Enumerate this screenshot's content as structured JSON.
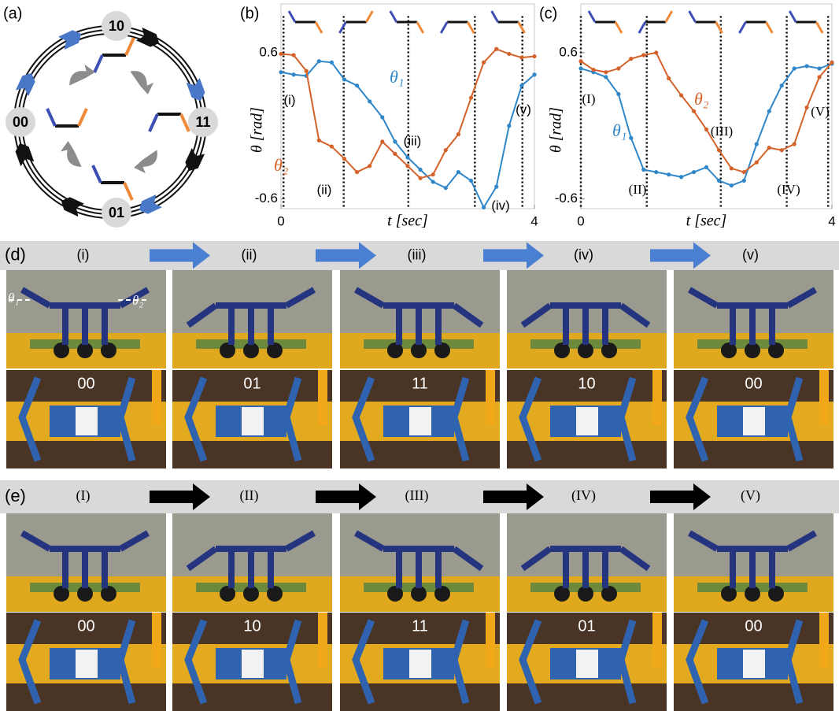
{
  "panel_a": {
    "label": "(a)",
    "states": [
      "10",
      "11",
      "01",
      "00"
    ]
  },
  "chart_data": [
    {
      "type": "line",
      "panel_label": "(b)",
      "xlabel": "t [sec]",
      "ylabel": "θ [rad]",
      "x": [
        0,
        0.2,
        0.4,
        0.6,
        0.8,
        1.0,
        1.2,
        1.4,
        1.6,
        1.8,
        2.0,
        2.2,
        2.4,
        2.6,
        2.8,
        3.0,
        3.2,
        3.4,
        3.6,
        3.8,
        4.0
      ],
      "series": [
        {
          "name": "θ₁",
          "color": "#2f86c8",
          "values": [
            0.44,
            0.42,
            0.41,
            0.53,
            0.52,
            0.38,
            0.33,
            0.2,
            0.07,
            -0.13,
            -0.26,
            -0.36,
            -0.46,
            -0.51,
            -0.38,
            -0.45,
            -0.67,
            -0.5,
            0.0,
            0.33,
            0.42
          ]
        },
        {
          "name": "θ₂",
          "color": "#d4622a",
          "values": [
            0.59,
            0.58,
            0.45,
            -0.12,
            -0.17,
            -0.27,
            -0.38,
            -0.33,
            -0.13,
            -0.23,
            -0.33,
            -0.43,
            -0.4,
            -0.2,
            -0.07,
            0.23,
            0.52,
            0.63,
            0.59,
            0.56,
            0.57
          ]
        }
      ],
      "xlim": [
        0,
        4
      ],
      "ylim": [
        -0.68,
        1.0
      ],
      "xticks": [
        0,
        4
      ],
      "yticks": [
        -0.6,
        0.6
      ],
      "event_lines": [
        0.04,
        0.99,
        2.01,
        3.06,
        3.81
      ],
      "event_labels": [
        "(i)",
        "(ii)",
        "(iii)",
        "(iv)",
        "(v)"
      ]
    },
    {
      "type": "line",
      "panel_label": "(c)",
      "xlabel": "t [sec]",
      "ylabel": "θ [rad]",
      "x": [
        0,
        0.2,
        0.4,
        0.6,
        0.8,
        1.0,
        1.2,
        1.4,
        1.6,
        1.8,
        2.0,
        2.2,
        2.4,
        2.6,
        2.8,
        3.0,
        3.2,
        3.4,
        3.6,
        3.8,
        4.0
      ],
      "series": [
        {
          "name": "θ₁",
          "color": "#2f86c8",
          "values": [
            0.47,
            0.44,
            0.4,
            0.26,
            -0.1,
            -0.36,
            -0.38,
            -0.4,
            -0.42,
            -0.38,
            -0.34,
            -0.45,
            -0.49,
            -0.45,
            -0.15,
            0.12,
            0.33,
            0.47,
            0.49,
            0.47,
            0.51
          ]
        },
        {
          "name": "θ₂",
          "color": "#d4622a",
          "values": [
            0.53,
            0.46,
            0.44,
            0.47,
            0.55,
            0.58,
            0.6,
            0.39,
            0.25,
            0.12,
            -0.03,
            -0.2,
            -0.35,
            -0.38,
            -0.3,
            -0.18,
            -0.2,
            -0.15,
            0.15,
            0.4,
            0.52
          ]
        }
      ],
      "xlim": [
        0,
        4
      ],
      "ylim": [
        -0.68,
        1.0
      ],
      "xticks": [
        0,
        4
      ],
      "yticks": [
        -0.6,
        0.6
      ],
      "event_lines": [
        0.0,
        1.05,
        2.23,
        3.28,
        3.94
      ],
      "event_labels": [
        "(I)",
        "(II)",
        "(III)",
        "(IV)",
        "(V)"
      ]
    }
  ],
  "panel_d": {
    "label": "(d)",
    "stages": [
      "(i)",
      "(ii)",
      "(iii)",
      "(iv)",
      "(v)"
    ],
    "codes": [
      "00",
      "01",
      "11",
      "10",
      "00"
    ],
    "angle_labels": [
      "θ₁",
      "θ₂"
    ]
  },
  "panel_e": {
    "label": "(e)",
    "stages": [
      "(I)",
      "(II)",
      "(III)",
      "(IV)",
      "(V)"
    ],
    "codes": [
      "00",
      "10",
      "11",
      "01",
      "00"
    ]
  }
}
